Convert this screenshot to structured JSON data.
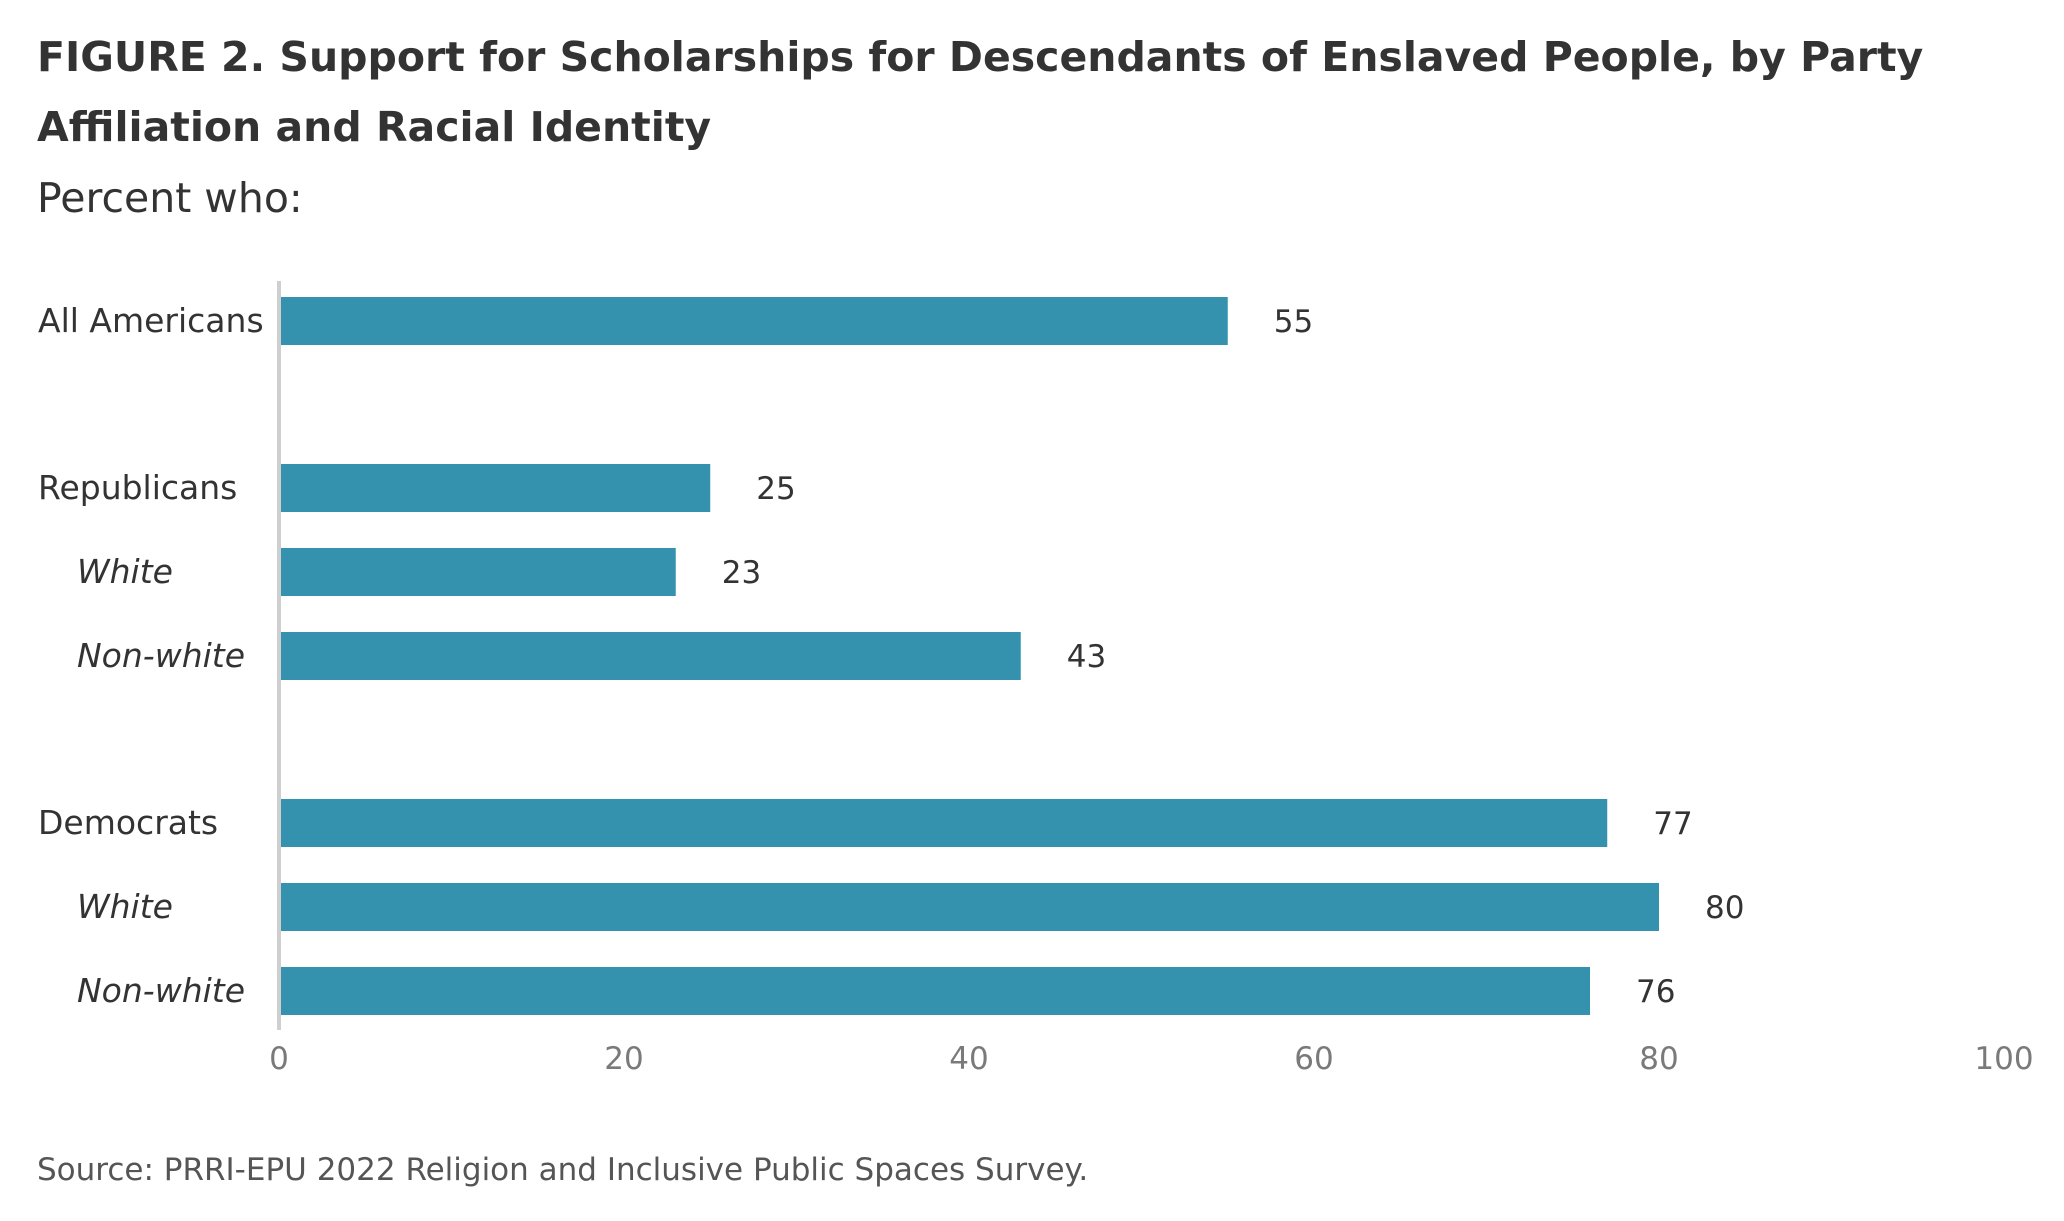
{
  "figure": {
    "title": "FIGURE 2.  Support for Scholarships for Descendants of Enslaved People, by Party Affiliation and Racial Identity",
    "subtitle": "Percent who:",
    "source": "Source: PRRI-EPU 2022 Religion and Inclusive Public Spaces Survey."
  },
  "colors": {
    "bar": "#3492ae",
    "axis": "#cfcfcf",
    "text": "#333333",
    "tick": "#7a7a7a"
  },
  "chart_data": {
    "type": "bar",
    "orientation": "horizontal",
    "categories": [
      "All Americans",
      "Republicans",
      "White",
      "Non-white",
      "Democrats",
      "White",
      "Non-white"
    ],
    "subgroup": [
      false,
      false,
      true,
      true,
      false,
      true,
      true
    ],
    "values": [
      55,
      25,
      23,
      43,
      77,
      80,
      76
    ],
    "xlim": [
      0,
      100
    ],
    "xticks": [
      0,
      20,
      40,
      60,
      80,
      100
    ],
    "grid": false,
    "legend": "none"
  }
}
